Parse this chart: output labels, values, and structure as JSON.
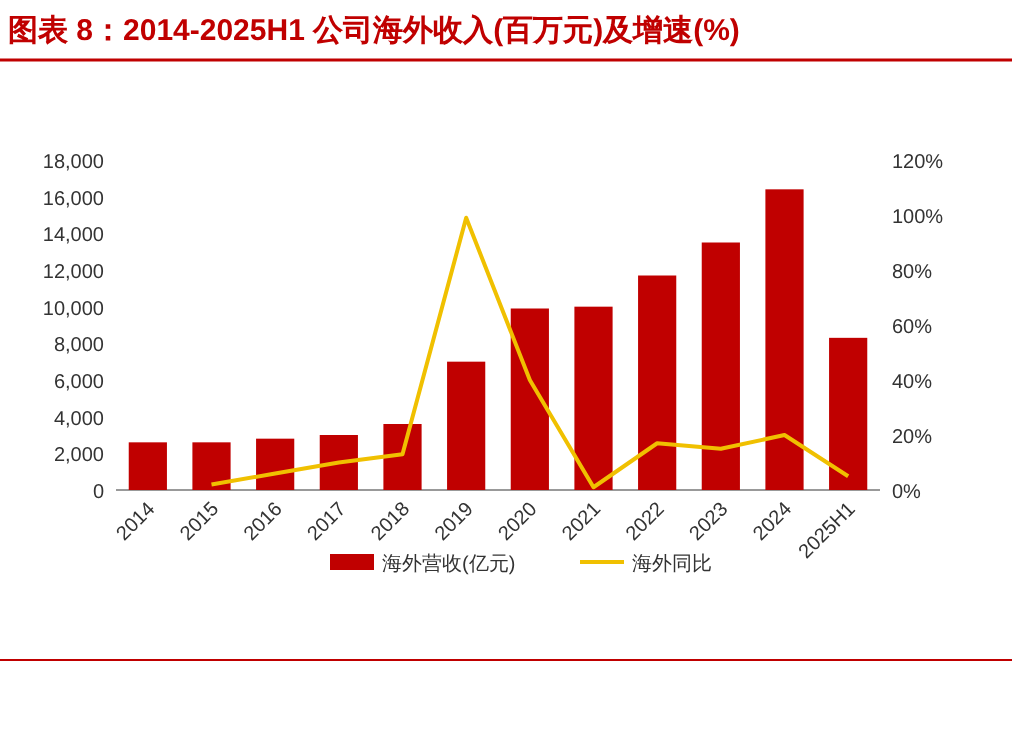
{
  "chart_data": {
    "type": "bar",
    "title": "图表 8：2014-2025H1 公司海外收入(百万元)及增速(%)",
    "categories": [
      "2014",
      "2015",
      "2016",
      "2017",
      "2018",
      "2019",
      "2020",
      "2021",
      "2022",
      "2023",
      "2024",
      "2025H1"
    ],
    "series": [
      {
        "name": "海外营收(亿元)",
        "color": "#c00000",
        "values": [
          2600,
          2600,
          2800,
          3000,
          3600,
          7000,
          9900,
          10000,
          11700,
          13500,
          16400,
          8300
        ]
      },
      {
        "name": "海外同比",
        "type": "line",
        "axis": "y2",
        "color": "#f0c000",
        "values": [
          null,
          2,
          6,
          10,
          13,
          99,
          40,
          1,
          17,
          15,
          20,
          5
        ]
      }
    ],
    "ylim": [
      0,
      18000
    ],
    "yticks": [
      0,
      {
        "value": 2000,
        "label": "2,000"
      },
      {
        "value": 4000,
        "label": "4,000"
      },
      {
        "value": 6000,
        "label": "6,000"
      },
      {
        "value": 8000,
        "label": "8,000"
      },
      {
        "value": 10000,
        "label": "10,000"
      },
      {
        "value": 12000,
        "label": "12,000"
      },
      {
        "value": 14000,
        "label": "14,000"
      },
      {
        "value": 16000,
        "label": "16,000"
      },
      {
        "value": 18000,
        "label": "18,000"
      }
    ],
    "y2lim": [
      0,
      120
    ],
    "y2ticks": [
      {
        "value": 0,
        "label": "0%"
      },
      {
        "value": 20,
        "label": "20%"
      },
      {
        "value": 40,
        "label": "40%"
      },
      {
        "value": 60,
        "label": "60%"
      },
      {
        "value": 80,
        "label": "80%"
      },
      {
        "value": 100,
        "label": "100%"
      },
      {
        "value": 120,
        "label": "120%"
      }
    ],
    "legend": "bottom",
    "grid": false
  }
}
